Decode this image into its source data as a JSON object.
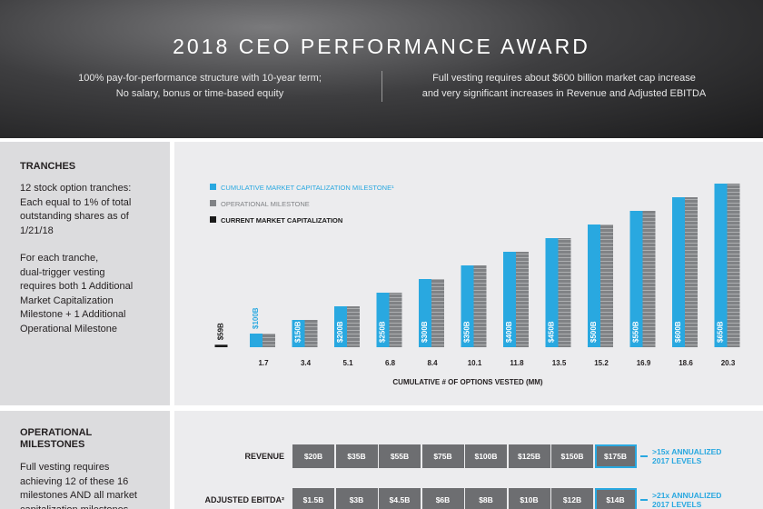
{
  "header": {
    "title": "2018 CEO PERFORMANCE AWARD",
    "left_lines": [
      "100% pay-for-performance structure with 10-year term;",
      "No salary, bonus or time-based equity"
    ],
    "right_lines": [
      "Full vesting requires about $600 billion market cap increase",
      "and very significant increases in Revenue and Adjusted EBITDA"
    ]
  },
  "tranches": {
    "heading": "TRANCHES",
    "paragraphs": [
      [
        "12 stock option tranches:",
        "Each equal to 1% of total",
        "outstanding shares as of",
        "1/21/18"
      ],
      [
        "For each tranche,",
        "dual-trigger vesting",
        "requires both 1 Additional",
        "Market Capitalization",
        "Milestone + 1 Additional",
        "Operational Milestone"
      ]
    ]
  },
  "chart_data": {
    "type": "bar",
    "x_label": "CUMULATIVE # OF OPTIONS VESTED (MM)",
    "categories": [
      null,
      "1.7",
      "3.4",
      "5.1",
      "6.8",
      "8.4",
      "10.1",
      "11.8",
      "13.5",
      "15.2",
      "16.9",
      "18.6",
      "20.3"
    ],
    "ylim": [
      50,
      650
    ],
    "series": [
      {
        "name": "CUMULATIVE MARKET CAPITALIZATION MILESTONE¹",
        "color": "#29a8e0",
        "values": [
          null,
          100,
          150,
          200,
          250,
          300,
          350,
          400,
          450,
          500,
          550,
          600,
          650
        ],
        "value_labels": [
          null,
          "$100B",
          "$150B",
          "$200B",
          "$250B",
          "$300B",
          "$350B",
          "$400B",
          "$450B",
          "$500B",
          "$550B",
          "$600B",
          "$650B"
        ]
      },
      {
        "name": "OPERATIONAL MILESTONE",
        "color": "#808285",
        "values": [
          null,
          100,
          150,
          200,
          250,
          300,
          350,
          400,
          450,
          500,
          550,
          600,
          650
        ]
      },
      {
        "name": "CURRENT MARKET CAPITALIZATION",
        "color": "#1a1a1a",
        "values": [
          59,
          null,
          null,
          null,
          null,
          null,
          null,
          null,
          null,
          null,
          null,
          null,
          null
        ],
        "value_labels": [
          "$59B",
          null,
          null,
          null,
          null,
          null,
          null,
          null,
          null,
          null,
          null,
          null,
          null
        ]
      }
    ]
  },
  "operational": {
    "heading": [
      "OPERATIONAL",
      "MILESTONES"
    ],
    "lines": [
      "Full vesting requires",
      "achieving 12 of these 16",
      "milestones AND all market",
      "capitalization milestones"
    ],
    "rows": [
      {
        "label": "REVENUE",
        "cells": [
          "$20B",
          "$35B",
          "$55B",
          "$75B",
          "$100B",
          "$125B",
          "$150B",
          "$175B"
        ],
        "note": [
          ">15x ANNUALIZED",
          "2017 LEVELS"
        ]
      },
      {
        "label": "ADJUSTED EBITDA²",
        "cells": [
          "$1.5B",
          "$3B",
          "$4.5B",
          "$6B",
          "$8B",
          "$10B",
          "$12B",
          "$14B"
        ],
        "note": [
          ">21x ANNUALIZED",
          "2017 LEVELS"
        ]
      }
    ]
  }
}
